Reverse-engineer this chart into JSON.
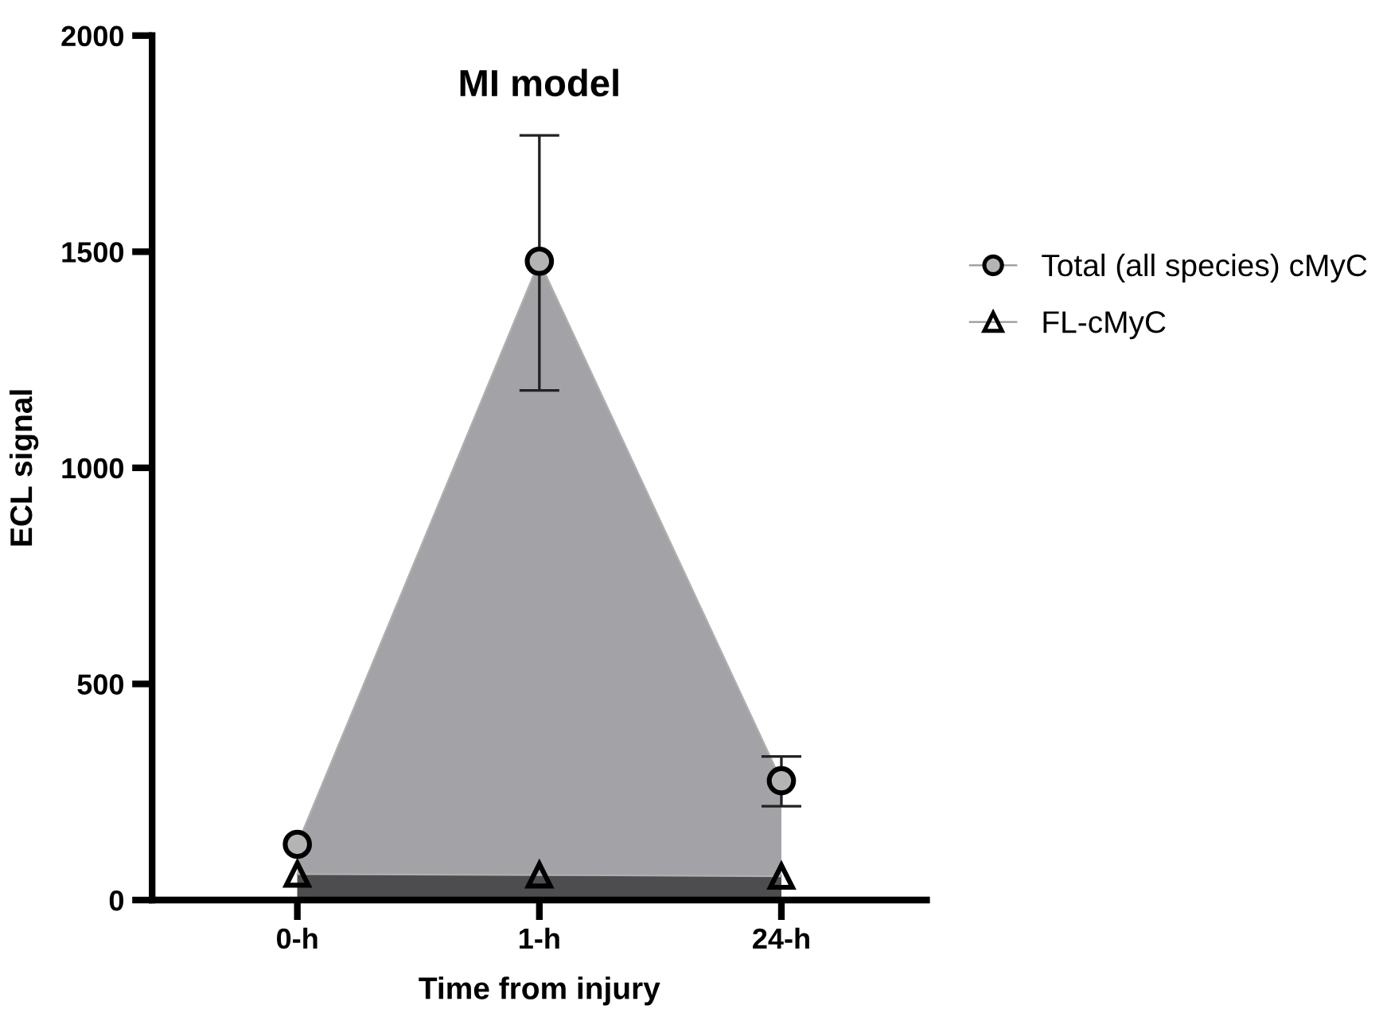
{
  "chart_data": {
    "type": "area",
    "title": "MI model",
    "xlabel": "Time from injury",
    "ylabel": "ECL signal",
    "categories": [
      "0-h",
      "1-h",
      "24-h"
    ],
    "series": [
      {
        "name": "Total (all species) cMyC",
        "color": "#a3a3a7",
        "values": [
          129,
          1478,
          276
        ],
        "errors": [
          null,
          [
            1179,
            1769
          ],
          [
            217,
            332
          ]
        ],
        "marker": "circle"
      },
      {
        "name": "FL-cMyC",
        "color": "#4d4d4f",
        "values": [
          60,
          58,
          55
        ],
        "marker": "triangle"
      }
    ],
    "ylim": [
      0,
      2000
    ],
    "yticks": [
      0,
      500,
      1000,
      1500,
      2000
    ],
    "grid": false,
    "legend": "right"
  }
}
